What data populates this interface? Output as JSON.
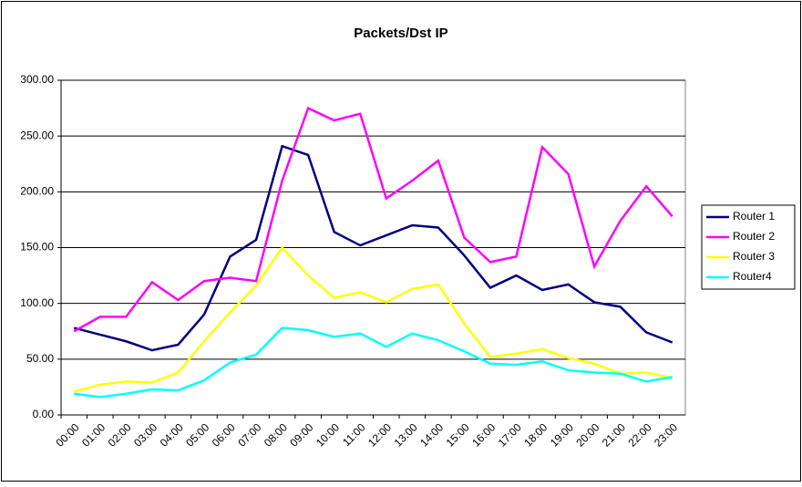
{
  "chart_data": {
    "type": "line",
    "title": "Packets/Dst IP",
    "categories": [
      "00:00",
      "01:00",
      "02:00",
      "03:00",
      "04:00",
      "05:00",
      "06:00",
      "07:00",
      "08:00",
      "09:00",
      "10:00",
      "11:00",
      "12:00",
      "13:00",
      "14:00",
      "15:00",
      "16:00",
      "17:00",
      "18:00",
      "19:00",
      "20:00",
      "21:00",
      "22:00",
      "23:00"
    ],
    "series": [
      {
        "name": "Router 1",
        "color": "#000080",
        "values": [
          78,
          72,
          66,
          58,
          63,
          90,
          142,
          157,
          241,
          233,
          164,
          152,
          161,
          170,
          168,
          143,
          114,
          125,
          112,
          117,
          101,
          97,
          74,
          65
        ]
      },
      {
        "name": "Router 2",
        "color": "#ff00ff",
        "values": [
          75,
          88,
          88,
          119,
          103,
          120,
          123,
          120,
          210,
          275,
          264,
          270,
          194,
          210,
          228,
          159,
          137,
          142,
          240,
          216,
          133,
          174,
          205,
          178
        ]
      },
      {
        "name": "Router 3",
        "color": "#ffff00",
        "values": [
          21,
          27,
          30,
          29,
          38,
          66,
          92,
          116,
          150,
          125,
          105,
          110,
          101,
          113,
          117,
          82,
          52,
          55,
          59,
          51,
          46,
          37,
          38,
          33
        ]
      },
      {
        "name": "Router4",
        "color": "#00ffff",
        "values": [
          19,
          16,
          19,
          23,
          22,
          31,
          47,
          54,
          78,
          76,
          70,
          73,
          61,
          73,
          67,
          57,
          46,
          45,
          48,
          40,
          38,
          37,
          30,
          34
        ]
      }
    ],
    "ylim": [
      0,
      300
    ],
    "yticks": [
      {
        "value": 0,
        "label": "0.00"
      },
      {
        "value": 50,
        "label": "50.00"
      },
      {
        "value": 100,
        "label": "100.00"
      },
      {
        "value": 150,
        "label": "150.00"
      },
      {
        "value": 200,
        "label": "200.00"
      },
      {
        "value": 250,
        "label": "250.00"
      },
      {
        "value": 300,
        "label": "300.00"
      }
    ],
    "grid": true,
    "legend": "right"
  }
}
